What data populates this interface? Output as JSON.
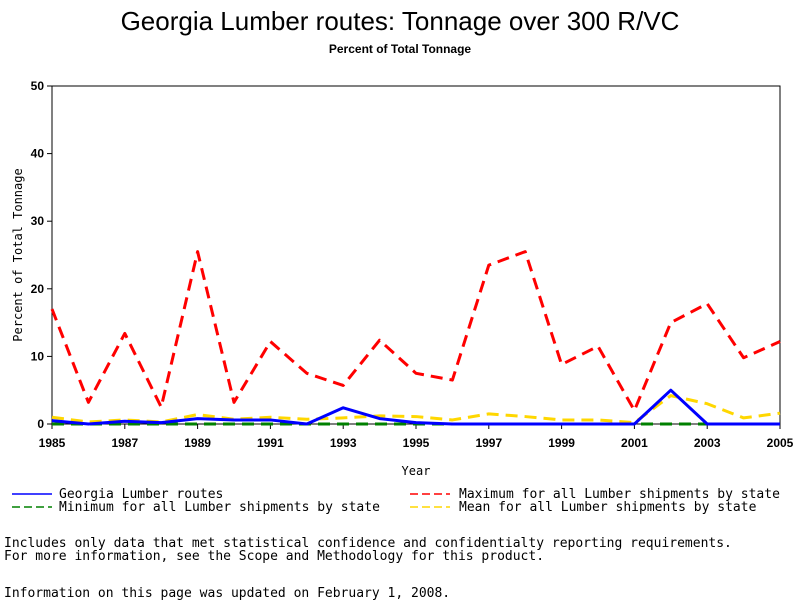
{
  "title": "Georgia Lumber routes: Tonnage over 300 R/VC",
  "subtitle": "Percent of Total Tonnage",
  "notes": {
    "line1": "Includes only data that met statistical confidence and confidentialty reporting requirements.",
    "line2": "For more information, see the Scope and Methodology for this product.",
    "updated": "Information on this page was updated on February 1, 2008."
  },
  "chart_data": {
    "type": "line",
    "xlabel": "Year",
    "ylabel": "Percent of Total Tonnage",
    "xlim": [
      1985,
      2005
    ],
    "ylim": [
      0,
      50
    ],
    "xticks": [
      1985,
      1987,
      1989,
      1991,
      1993,
      1995,
      1997,
      1999,
      2001,
      2003,
      2005
    ],
    "yticks": [
      0,
      10,
      20,
      30,
      40,
      50
    ],
    "grid": false,
    "legend_position": "bottom",
    "x": [
      1985,
      1986,
      1987,
      1988,
      1989,
      1990,
      1991,
      1992,
      1993,
      1994,
      1995,
      1996,
      1997,
      1998,
      1999,
      2000,
      2001,
      2002,
      2003,
      2004,
      2005
    ],
    "series": [
      {
        "name": "Georgia Lumber routes",
        "color": "#0000ff",
        "dash": "solid",
        "values": [
          0.5,
          0,
          0.4,
          0.2,
          0.8,
          0.6,
          0.6,
          0,
          2.4,
          0.8,
          0.2,
          0,
          0,
          0,
          0,
          0,
          0,
          5.0,
          0,
          0,
          0
        ]
      },
      {
        "name": "Maximum for all Lumber shipments by state",
        "color": "#ff0000",
        "dash": "dashed",
        "values": [
          17,
          3.2,
          13.4,
          2.5,
          25.5,
          3.2,
          12.2,
          7.5,
          5.7,
          12.4,
          7.5,
          6.5,
          23.5,
          25.5,
          8.8,
          11.5,
          2.0,
          15.0,
          17.8,
          9.8,
          12.2
        ]
      },
      {
        "name": "Minimum for all Lumber shipments by state",
        "color": "#008000",
        "dash": "dashed",
        "values": [
          0,
          0,
          0,
          0,
          0,
          0,
          0,
          0,
          0,
          0,
          0,
          0,
          0,
          0,
          0,
          0,
          0,
          0,
          0,
          0,
          0
        ]
      },
      {
        "name": "Mean for all Lumber shipments by state",
        "color": "#ffd700",
        "dash": "dashed",
        "values": [
          1.0,
          0.3,
          0.6,
          0.3,
          1.4,
          0.7,
          1.0,
          0.7,
          0.9,
          1.2,
          1.1,
          0.6,
          1.5,
          1.1,
          0.6,
          0.6,
          0.2,
          4.2,
          3.0,
          0.9,
          1.6
        ]
      }
    ]
  }
}
